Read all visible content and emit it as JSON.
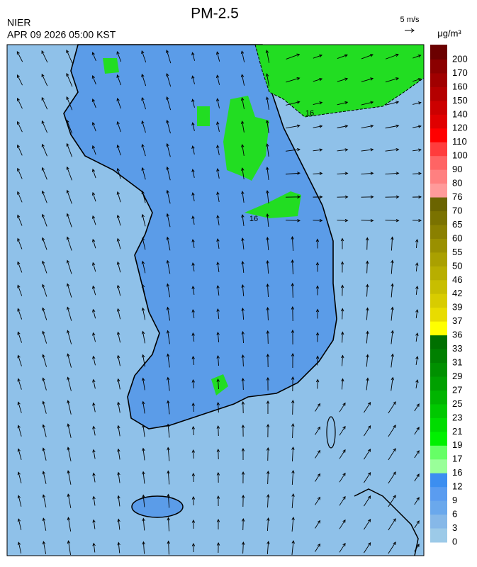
{
  "header": {
    "title": "PM-2.5",
    "agency": "NIER",
    "timestamp": "APR 09 2026 05:00 KST",
    "wind_scale": "5 m/s",
    "unit": "μg/m³"
  },
  "contour_labels": [
    "16",
    "16"
  ],
  "colorbar": {
    "levels": [
      200,
      170,
      160,
      150,
      140,
      120,
      110,
      100,
      90,
      80,
      76,
      70,
      65,
      60,
      55,
      50,
      46,
      42,
      39,
      37,
      36,
      33,
      31,
      29,
      27,
      25,
      23,
      21,
      19,
      17,
      16,
      12,
      9,
      6,
      3,
      0
    ],
    "colors": [
      "#6b0000",
      "#8b0000",
      "#a00000",
      "#b40000",
      "#cc0000",
      "#e00000",
      "#ff0000",
      "#ff3c3c",
      "#ff6464",
      "#ff8080",
      "#ff9a9a",
      "#6b6400",
      "#7a7200",
      "#8a8000",
      "#9a9000",
      "#aaa000",
      "#b8ae00",
      "#c8be00",
      "#d8cc00",
      "#e8dc00",
      "#ffff00",
      "#007000",
      "#008000",
      "#009000",
      "#00a000",
      "#00b400",
      "#00c800",
      "#00dc00",
      "#00f000",
      "#66ff66",
      "#99ff99",
      "#3c8ef0",
      "#5a9cf0",
      "#6aa8ec",
      "#86b8e8",
      "#9ccae8"
    ]
  }
}
